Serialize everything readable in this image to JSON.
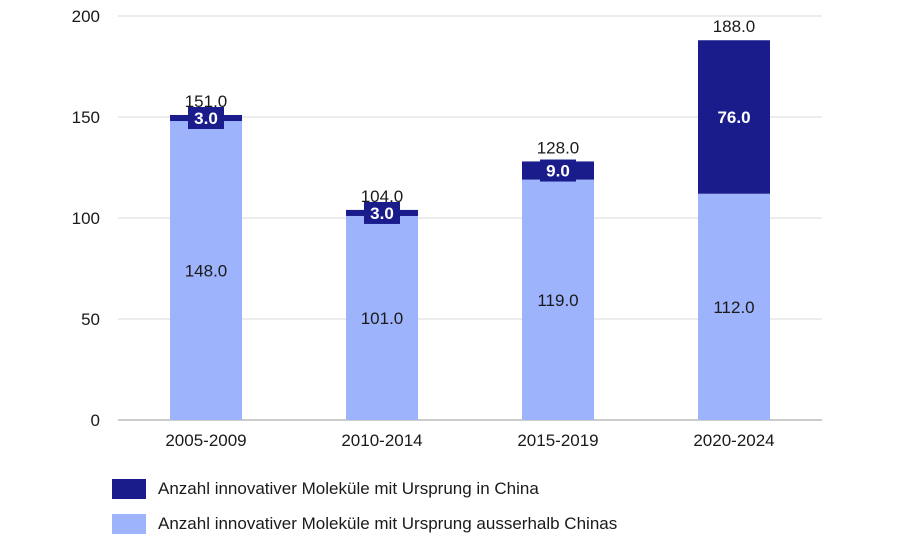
{
  "chart_data": {
    "type": "bar",
    "stacked": true,
    "categories": [
      "2005-2009",
      "2010-2014",
      "2015-2019",
      "2020-2024"
    ],
    "series": [
      {
        "name": "Anzahl innovativer Moleküle mit Ursprung ausserhalb Chinas",
        "values": [
          148.0,
          101.0,
          119.0,
          112.0
        ],
        "color": "#9db3fb"
      },
      {
        "name": "Anzahl innovativer Moleküle mit Ursprung in China",
        "values": [
          3.0,
          3.0,
          9.0,
          76.0
        ],
        "color": "#1a1c8c"
      }
    ],
    "totals": [
      151.0,
      104.0,
      128.0,
      188.0
    ],
    "ylim": [
      0,
      200
    ],
    "yticks": [
      0,
      50,
      100,
      150,
      200
    ],
    "grid": true,
    "legend_position": "bottom-left"
  },
  "legend": [
    {
      "label": "Anzahl innovativer Moleküle mit Ursprung in China",
      "color": "#1a1c8c"
    },
    {
      "label": "Anzahl innovativer Moleküle mit Ursprung ausserhalb Chinas",
      "color": "#9db3fb"
    }
  ]
}
